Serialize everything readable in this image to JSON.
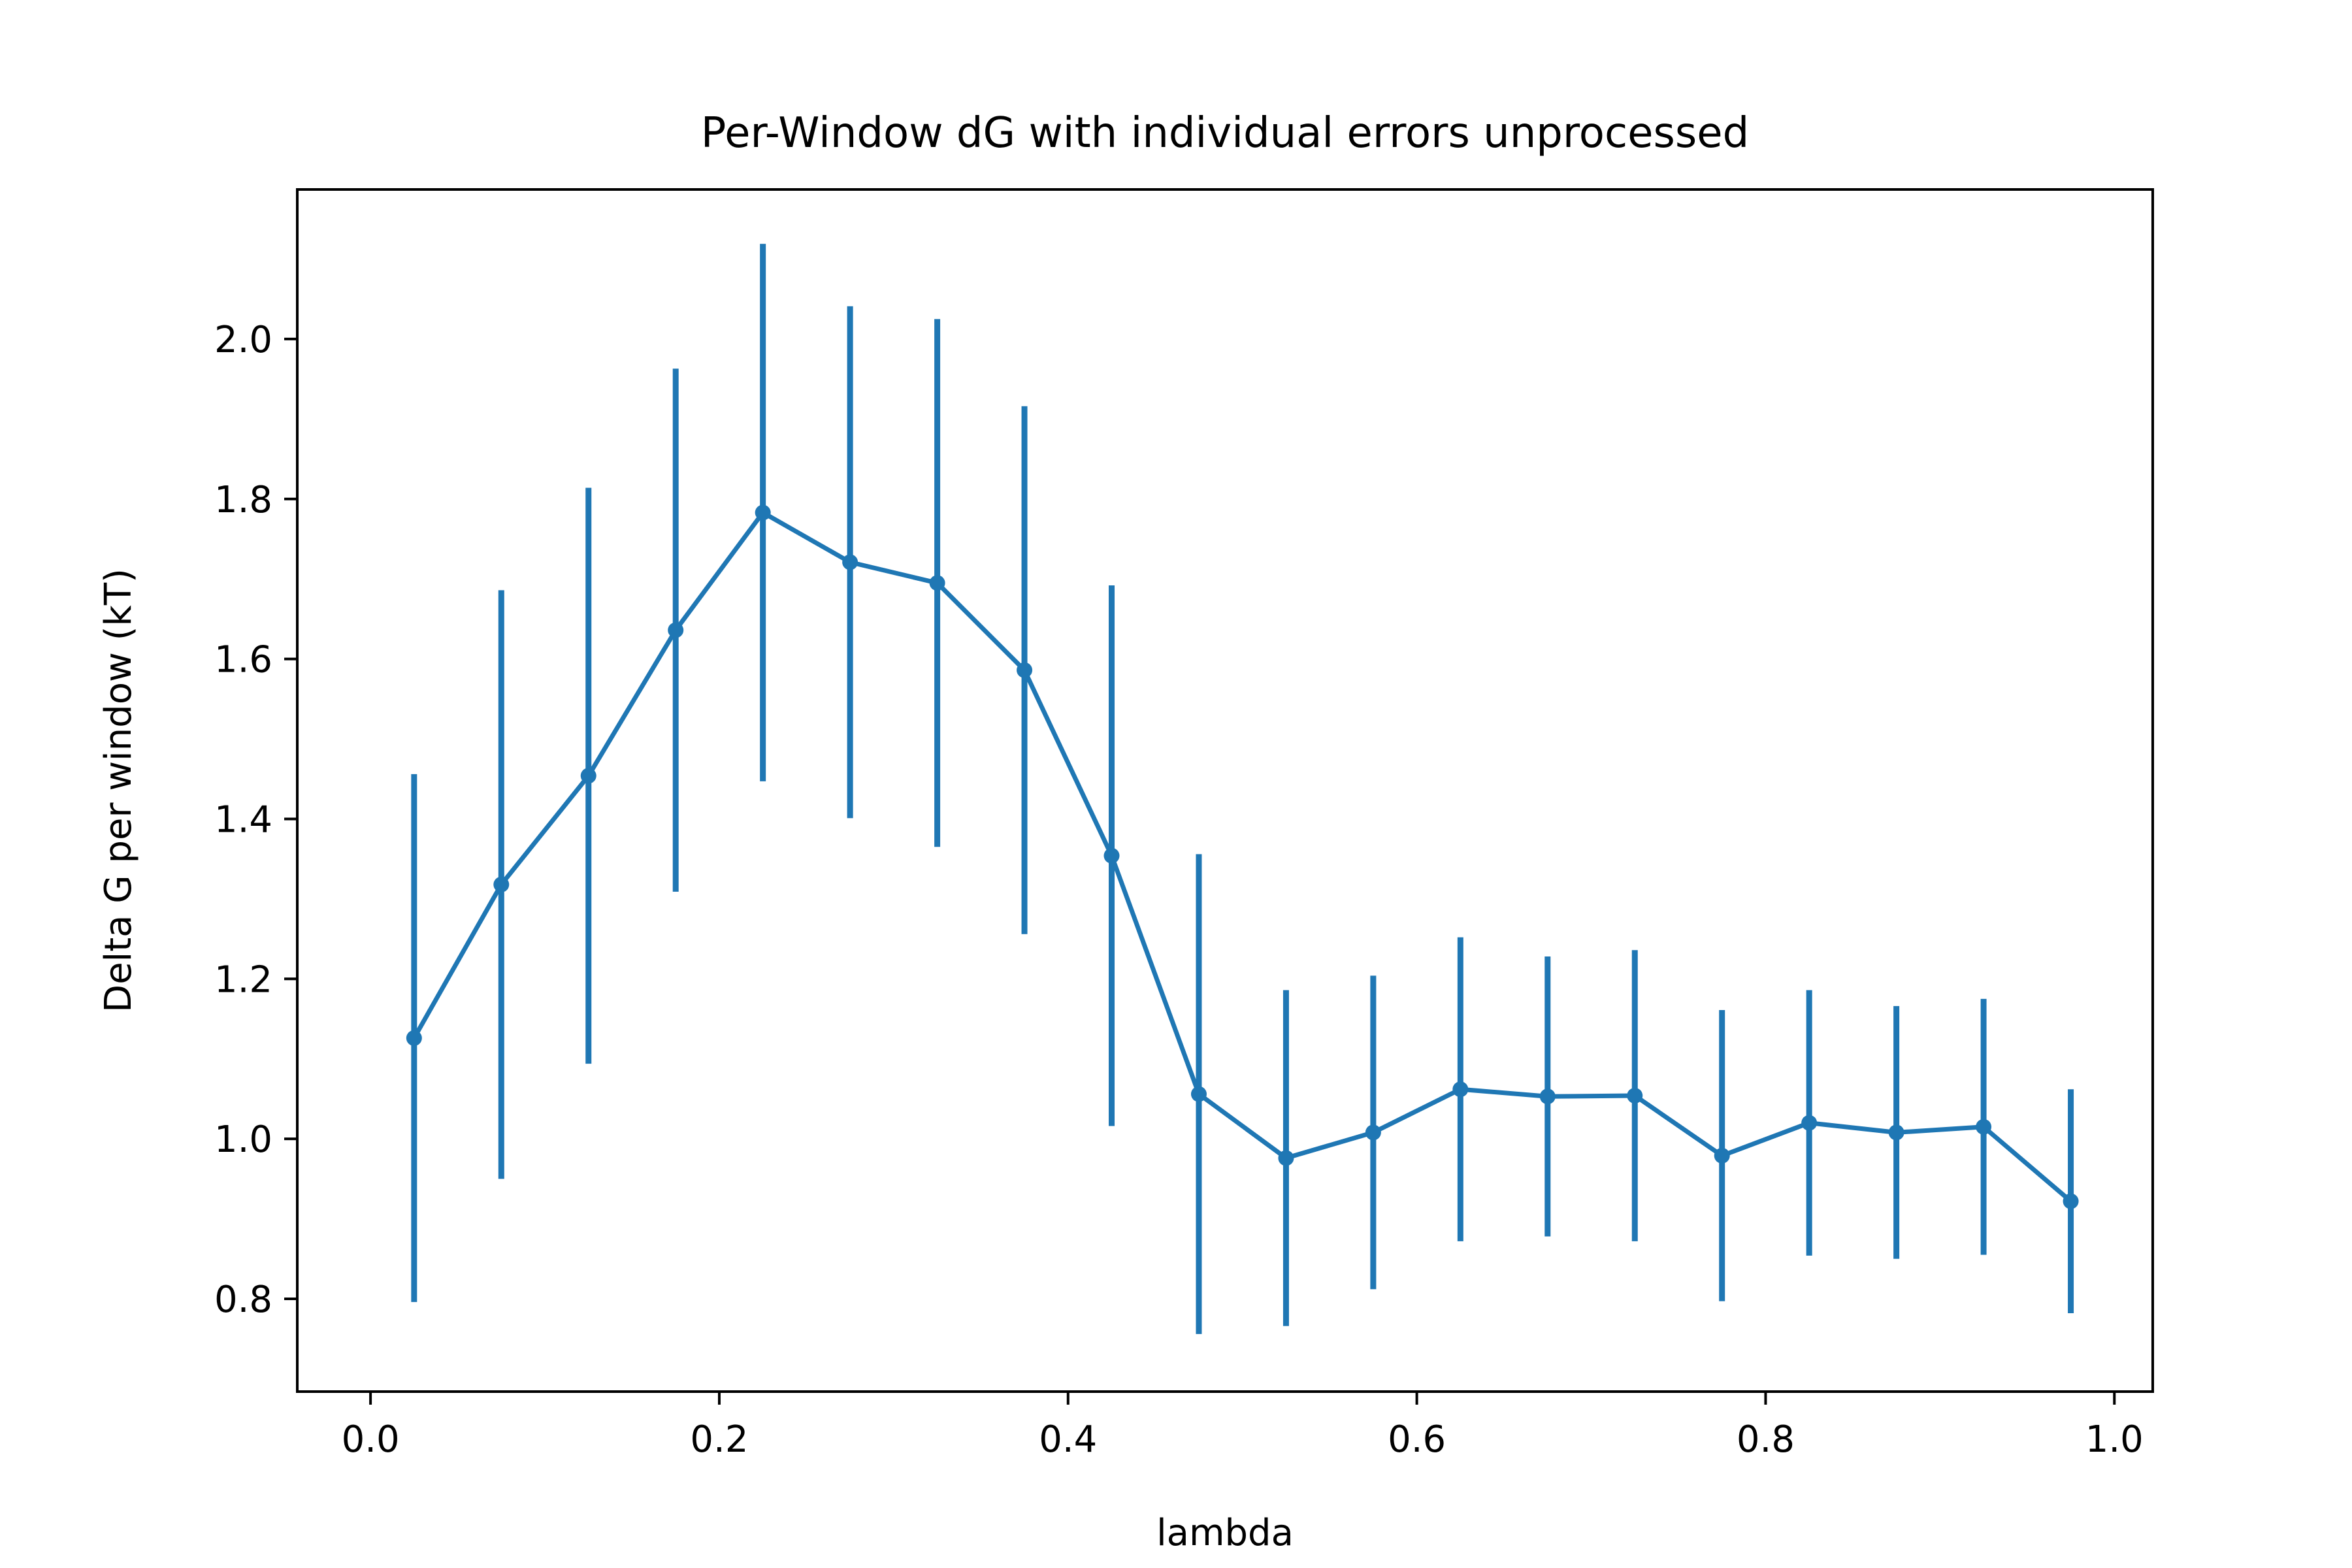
{
  "chart_data": {
    "type": "line",
    "title": "Per-Window dG with individual errors unprocessed",
    "xlabel": "lambda",
    "ylabel": "Delta G per window (kT)",
    "xlim": [
      -0.042,
      1.022
    ],
    "ylim": [
      0.684,
      2.187
    ],
    "xticks": [
      {
        "value": 0.0,
        "label": "0.0"
      },
      {
        "value": 0.2,
        "label": "0.2"
      },
      {
        "value": 0.4,
        "label": "0.4"
      },
      {
        "value": 0.6,
        "label": "0.6"
      },
      {
        "value": 0.8,
        "label": "0.8"
      },
      {
        "value": 1.0,
        "label": "1.0"
      }
    ],
    "yticks": [
      {
        "value": 0.8,
        "label": "0.8"
      },
      {
        "value": 1.0,
        "label": "1.0"
      },
      {
        "value": 1.2,
        "label": "1.2"
      },
      {
        "value": 1.4,
        "label": "1.4"
      },
      {
        "value": 1.6,
        "label": "1.6"
      },
      {
        "value": 1.8,
        "label": "1.8"
      },
      {
        "value": 2.0,
        "label": "2.0"
      }
    ],
    "grid": false,
    "legend": "none",
    "series": [
      {
        "color": "#1f77b4",
        "x": [
          0.025,
          0.075,
          0.125,
          0.175,
          0.225,
          0.275,
          0.325,
          0.375,
          0.425,
          0.475,
          0.525,
          0.575,
          0.625,
          0.675,
          0.725,
          0.775,
          0.825,
          0.875,
          0.925,
          0.975
        ],
        "y": [
          1.126,
          1.318,
          1.454,
          1.636,
          1.783,
          1.721,
          1.695,
          1.586,
          1.354,
          1.056,
          0.976,
          1.008,
          1.062,
          1.053,
          1.054,
          0.979,
          1.02,
          1.008,
          1.015,
          0.922
        ],
        "error": [
          0.33,
          0.368,
          0.36,
          0.327,
          0.336,
          0.32,
          0.33,
          0.33,
          0.338,
          0.3,
          0.21,
          0.196,
          0.19,
          0.175,
          0.182,
          0.182,
          0.166,
          0.158,
          0.16,
          0.14
        ]
      }
    ]
  }
}
